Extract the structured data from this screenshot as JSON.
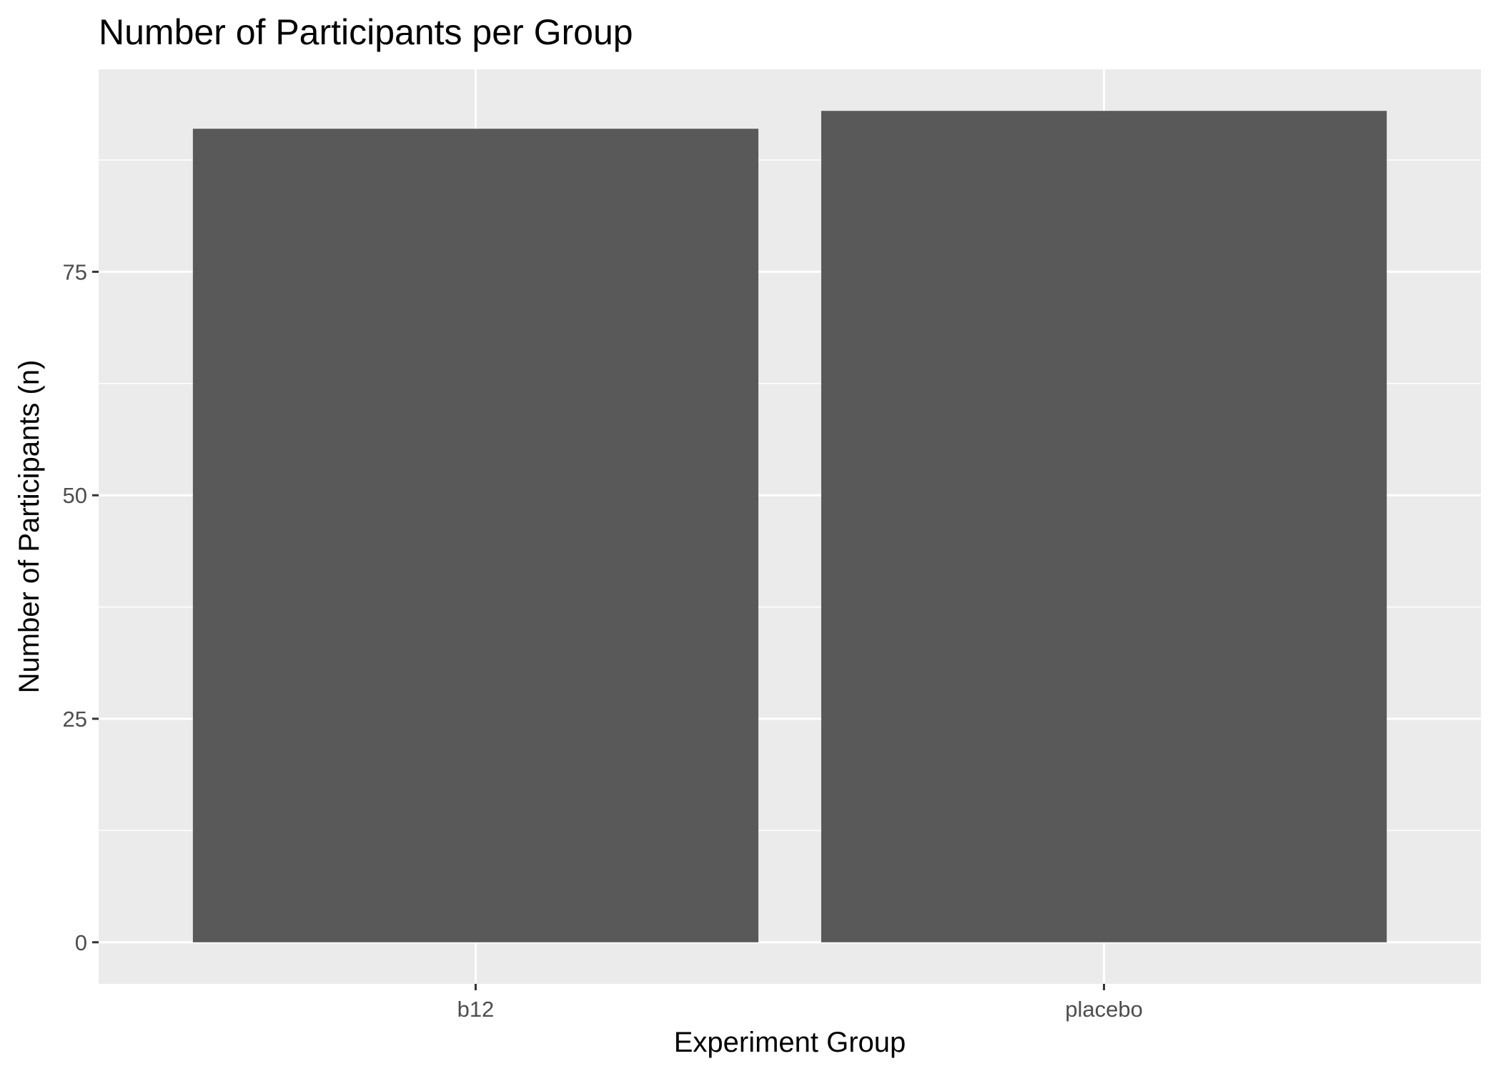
{
  "colors": {
    "panel_background": "#EBEBEB",
    "grid_line": "#FFFFFF",
    "bar_fill": "#595959",
    "tick_mark": "#333333",
    "tick_label": "#4D4D4D",
    "text": "#000000"
  },
  "chart_data": {
    "type": "bar",
    "title": "Number of Participants per Group",
    "xlabel": "Experiment Group",
    "ylabel": "Number of Participants (n)",
    "categories": [
      "b12",
      "placebo"
    ],
    "values": [
      91,
      93
    ],
    "ylim": [
      -4.65,
      97.65
    ],
    "y_ticks": [
      0,
      25,
      50,
      75
    ],
    "y_tick_labels": [
      "0",
      "25",
      "50",
      "75"
    ],
    "y_minor_ticks": [
      12.5,
      37.5,
      62.5,
      87.5
    ],
    "grid": true,
    "legend": "none"
  }
}
